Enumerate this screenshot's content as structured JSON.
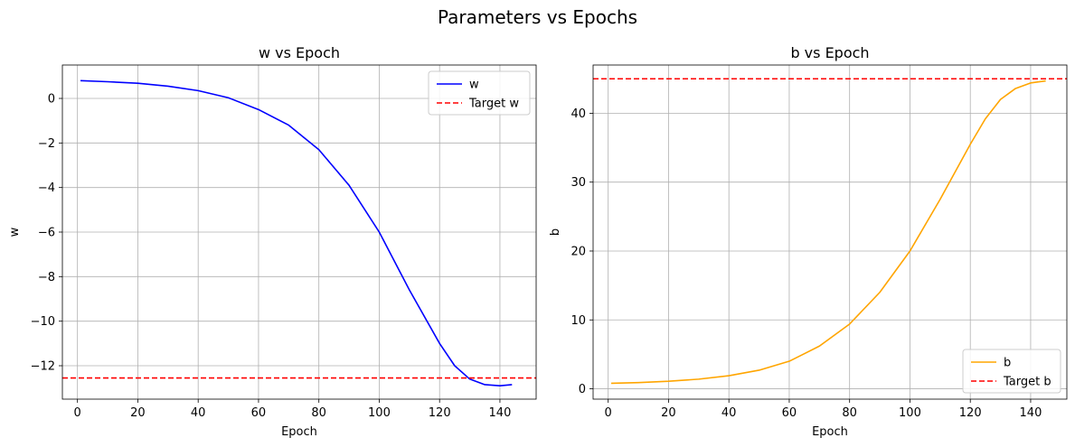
{
  "figure_title": "Parameters vs Epochs",
  "chart_data": [
    {
      "type": "line",
      "title": "w vs Epoch",
      "xlabel": "Epoch",
      "ylabel": "w",
      "xlim": [
        -5,
        152
      ],
      "ylim": [
        -13.5,
        1.5
      ],
      "xticks": [
        0,
        20,
        40,
        60,
        80,
        100,
        120,
        140
      ],
      "yticks": [
        -12,
        -10,
        -8,
        -6,
        -4,
        -2,
        0
      ],
      "grid": true,
      "legend_position": "upper right",
      "series": [
        {
          "name": "w",
          "color": "#0000ff",
          "style": "solid",
          "x": [
            1,
            10,
            20,
            30,
            40,
            50,
            60,
            70,
            80,
            90,
            100,
            110,
            120,
            125,
            130,
            135,
            140,
            144
          ],
          "y": [
            0.8,
            0.75,
            0.68,
            0.55,
            0.35,
            0.03,
            -0.5,
            -1.2,
            -2.3,
            -3.9,
            -6.0,
            -8.6,
            -11.0,
            -12.0,
            -12.6,
            -12.85,
            -12.9,
            -12.85
          ]
        },
        {
          "name": "Target w",
          "color": "#ff0000",
          "style": "dashed",
          "y_constant": -12.55
        }
      ]
    },
    {
      "type": "line",
      "title": "b vs Epoch",
      "xlabel": "Epoch",
      "ylabel": "b",
      "xlim": [
        -5,
        152
      ],
      "ylim": [
        -1.5,
        47
      ],
      "xticks": [
        0,
        20,
        40,
        60,
        80,
        100,
        120,
        140
      ],
      "yticks": [
        0,
        10,
        20,
        30,
        40
      ],
      "grid": true,
      "legend_position": "lower right",
      "series": [
        {
          "name": "b",
          "color": "#ffa500",
          "style": "solid",
          "x": [
            1,
            10,
            20,
            30,
            40,
            50,
            60,
            70,
            80,
            90,
            100,
            110,
            120,
            125,
            130,
            135,
            140,
            145
          ],
          "y": [
            0.8,
            0.9,
            1.1,
            1.4,
            1.9,
            2.7,
            4.0,
            6.2,
            9.4,
            14.0,
            20.0,
            27.5,
            35.5,
            39.2,
            42.0,
            43.6,
            44.4,
            44.7
          ]
        },
        {
          "name": "Target b",
          "color": "#ff0000",
          "style": "dashed",
          "y_constant": 45.0
        }
      ]
    }
  ]
}
